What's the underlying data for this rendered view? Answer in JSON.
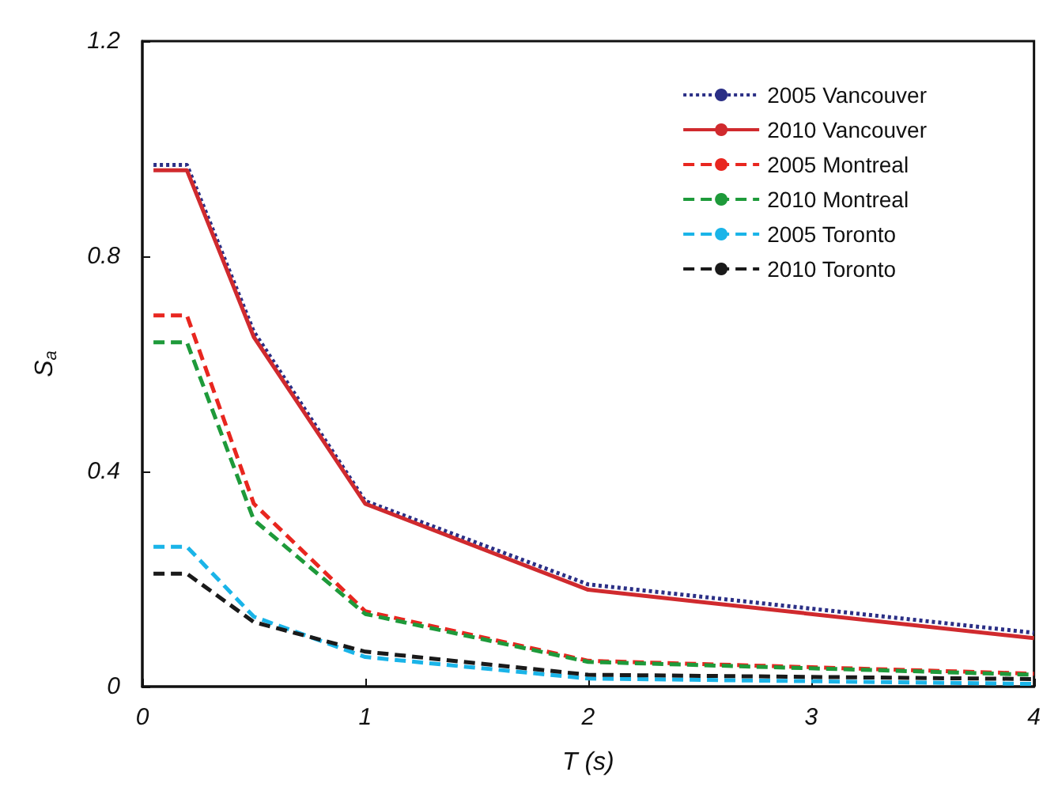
{
  "chart_data": {
    "type": "line",
    "xlabel": "T (s)",
    "ylabel": "S$_{a}$",
    "xlim": [
      0,
      4
    ],
    "xticks": [
      0,
      1,
      2,
      3,
      4
    ],
    "ylim": [
      0,
      1.2
    ],
    "yticks": [
      0,
      0.4,
      0.8,
      1.2
    ],
    "grid": false,
    "legend": "top right",
    "marker": "none",
    "x": [
      0.05,
      0.2,
      0.5,
      1,
      2,
      4
    ],
    "series": [
      {
        "name": "2005 Vancouver",
        "color": "#2b2f86",
        "line_style": "dotted",
        "values": [
          0.97,
          0.97,
          0.66,
          0.345,
          0.19,
          0.1
        ]
      },
      {
        "name": "2010 Vancouver",
        "color": "#d02a2e",
        "line_style": "solid",
        "values": [
          0.96,
          0.96,
          0.65,
          0.34,
          0.18,
          0.09
        ]
      },
      {
        "name": "2005 Montreal",
        "color": "#e8261f",
        "line_style": "dashed",
        "values": [
          0.69,
          0.69,
          0.34,
          0.14,
          0.048,
          0.024
        ]
      },
      {
        "name": "2010 Montreal",
        "color": "#1e9a3a",
        "line_style": "dashed",
        "values": [
          0.64,
          0.64,
          0.31,
          0.135,
          0.046,
          0.022
        ]
      },
      {
        "name": "2005 Toronto",
        "color": "#1ab4e8",
        "line_style": "dashed",
        "values": [
          0.26,
          0.26,
          0.13,
          0.055,
          0.015,
          0.005
        ]
      },
      {
        "name": "2010 Toronto",
        "color": "#1a1a1a",
        "line_style": "dashed",
        "values": [
          0.21,
          0.21,
          0.12,
          0.065,
          0.022,
          0.014
        ]
      }
    ]
  }
}
